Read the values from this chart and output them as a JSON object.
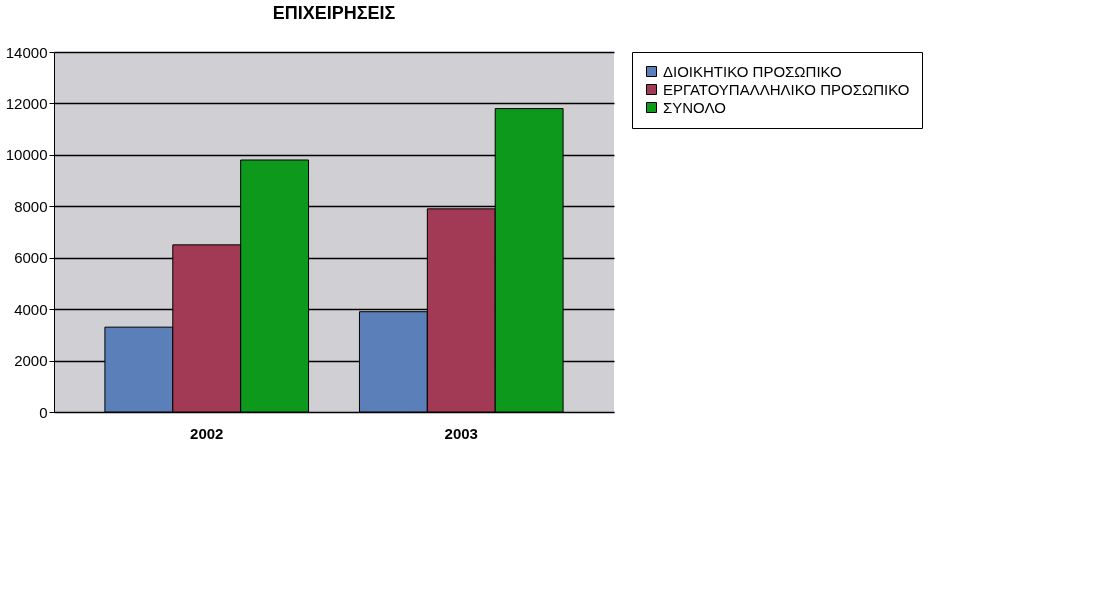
{
  "chart_data": {
    "type": "bar",
    "title": "ΕΠΙΧΕΙΡΗΣΕΙΣ",
    "categories": [
      "2002",
      "2003"
    ],
    "series": [
      {
        "name": "ΔΙΟΙΚΗΤΙΚΟ ΠΡΟΣΩΠΙΚΟ",
        "color": "#5b7fb8",
        "values": [
          3300,
          3900
        ]
      },
      {
        "name": "ΕΡΓΑΤΟΥΠΑΛΛΗΛΙΚΟ ΠΡΟΣΩΠΙΚΟ",
        "color": "#a33a55",
        "values": [
          6500,
          7900
        ]
      },
      {
        "name": "ΣΥΝΟΛΟ",
        "color": "#0d9a1c",
        "values": [
          9800,
          11800
        ]
      }
    ],
    "ylim": [
      0,
      14000
    ],
    "yticks": [
      0,
      2000,
      4000,
      6000,
      8000,
      10000,
      12000,
      14000
    ],
    "grid": "y",
    "legend": "right"
  }
}
